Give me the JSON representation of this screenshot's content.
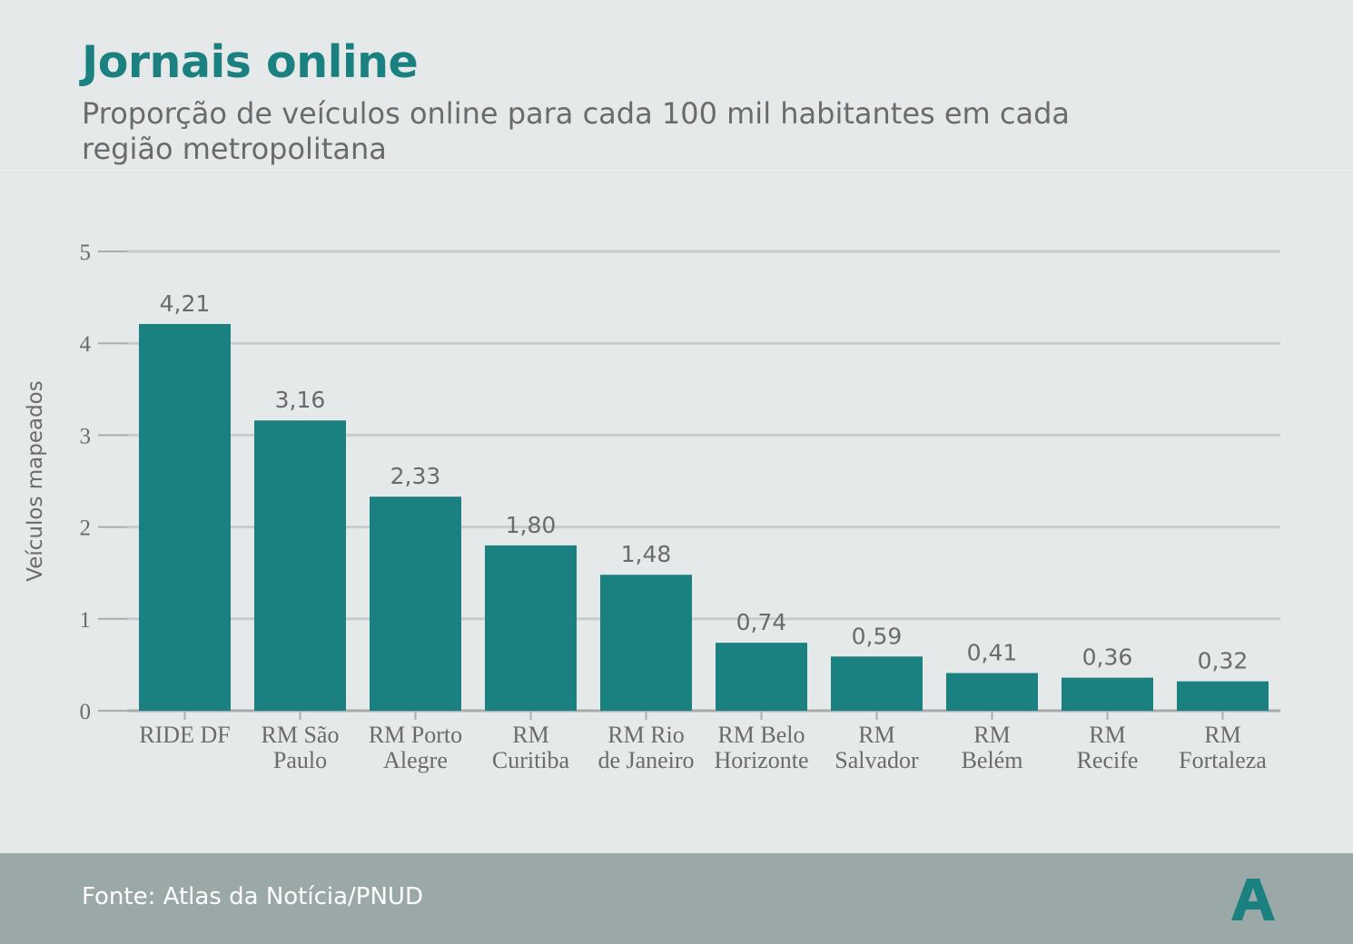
{
  "header": {
    "title": "Jornais online",
    "subtitle": "Proporção de veículos online para cada 100 mil habitantes em cada região metropolitana"
  },
  "footer": {
    "source": "Fonte: Atlas da Notícia/PNUD",
    "logo_letter": "A",
    "logo_icon": "atlas-logo-icon"
  },
  "colors": {
    "bar": "#1a8080",
    "title": "#1a8080",
    "text": "#6b6b6b",
    "grid": "#c9cccc",
    "background": "#e6e9e9",
    "footer": "#9aa8a7"
  },
  "chart_data": {
    "type": "bar",
    "ylabel": "Veículos mapeados",
    "xlabel": "",
    "ylim": [
      0,
      5
    ],
    "yticks": [
      "0",
      "1",
      "2",
      "3",
      "4",
      "5"
    ],
    "grid": true,
    "categories": [
      [
        "RIDE DF"
      ],
      [
        "RM São",
        "Paulo"
      ],
      [
        "RM Porto",
        "Alegre"
      ],
      [
        "RM",
        "Curitiba"
      ],
      [
        "RM Rio",
        "de Janeiro"
      ],
      [
        "RM Belo",
        "Horizonte"
      ],
      [
        "RM",
        "Salvador"
      ],
      [
        "RM",
        "Belém"
      ],
      [
        "RM",
        "Recife"
      ],
      [
        "RM",
        "Fortaleza"
      ]
    ],
    "values": [
      4.21,
      3.16,
      2.33,
      1.8,
      1.48,
      0.74,
      0.59,
      0.41,
      0.36,
      0.32
    ],
    "value_labels": [
      "4,21",
      "3,16",
      "2,33",
      "1,80",
      "1,48",
      "0,74",
      "0,59",
      "0,41",
      "0,36",
      "0,32"
    ]
  }
}
